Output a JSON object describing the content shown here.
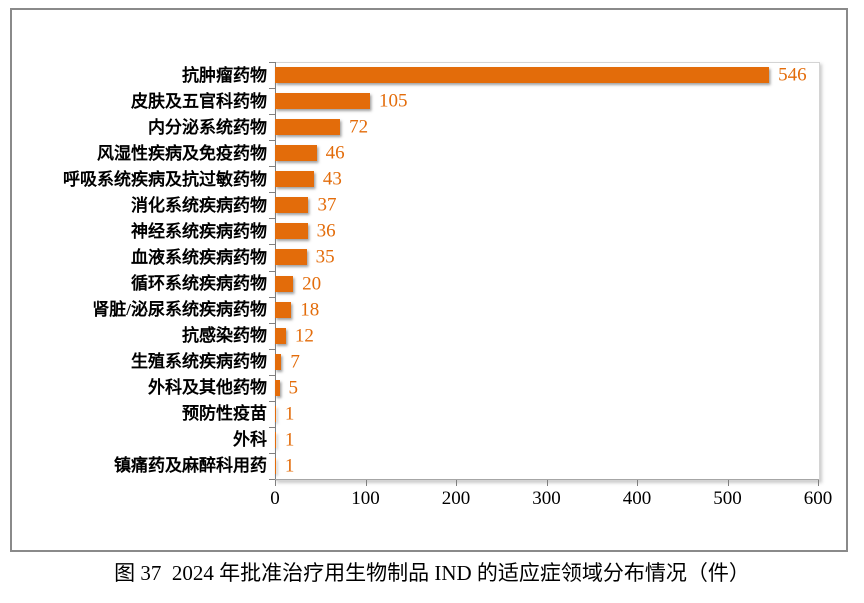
{
  "figure": {
    "caption": "图 37  2024 年批准治疗用生物制品 IND 的适应症领域分布情况（件）"
  },
  "chart_data": {
    "type": "bar",
    "orientation": "horizontal",
    "title": "",
    "xlabel": "",
    "ylabel": "",
    "categories": [
      "抗肿瘤药物",
      "皮肤及五官科药物",
      "内分泌系统药物",
      "风湿性疾病及免疫药物",
      "呼吸系统疾病及抗过敏药物",
      "消化系统疾病药物",
      "神经系统疾病药物",
      "血液系统疾病药物",
      "循环系统疾病药物",
      "肾脏/泌尿系统疾病药物",
      "抗感染药物",
      "生殖系统疾病药物",
      "外科及其他药物",
      "预防性疫苗",
      "外科",
      "镇痛药及麻醉科用药"
    ],
    "values": [
      546,
      105,
      72,
      46,
      43,
      37,
      36,
      35,
      20,
      18,
      12,
      7,
      5,
      1,
      1,
      1
    ],
    "xlim": [
      0,
      600
    ],
    "x_ticks": [
      0,
      100,
      200,
      300,
      400,
      500,
      600
    ],
    "grid": "off",
    "legend": "none",
    "bar_color": "#e36c0a",
    "value_label_color": "#e36c0a"
  }
}
